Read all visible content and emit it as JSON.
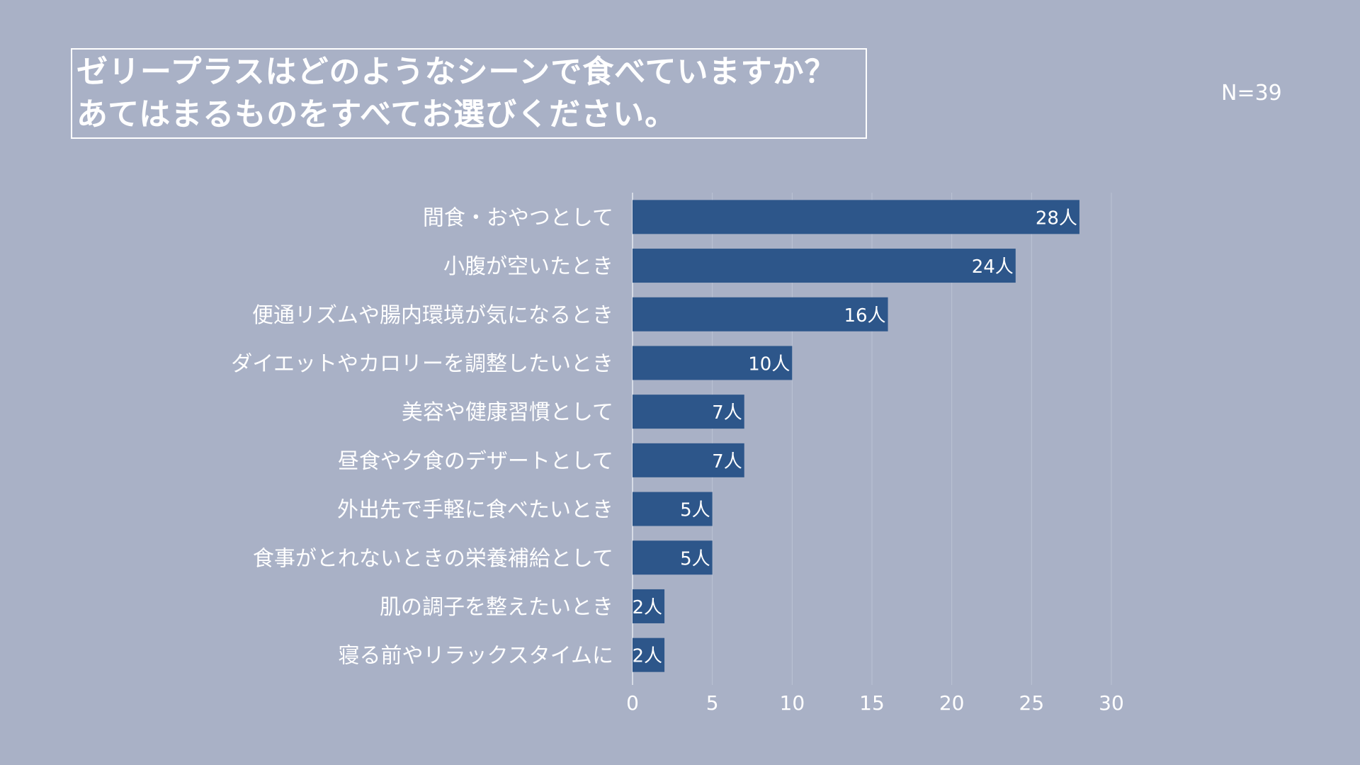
{
  "title": {
    "line1": "ゼリープラスはどのようなシーンで食べていますか？",
    "line2": "あてはまるものをすべてお選びください。"
  },
  "sample_size": "N=39",
  "colors": {
    "background": "#a9b1c6",
    "bar": "#2d568a",
    "text": "#ffffff",
    "grid": "#bcc3d4"
  },
  "chart_data": {
    "type": "bar",
    "orientation": "horizontal",
    "categories": [
      "間食・おやつとして",
      "小腹が空いたとき",
      "便通リズムや腸内環境が気になるとき",
      "ダイエットやカロリーを調整したいとき",
      "美容や健康習慣として",
      "昼食や夕食のデザートとして",
      "外出先で手軽に食べたいとき",
      "食事がとれないときの栄養補給として",
      "肌の調子を整えたいとき",
      "寝る前やリラックスタイムに"
    ],
    "values": [
      28,
      24,
      16,
      10,
      7,
      7,
      5,
      5,
      2,
      2
    ],
    "data_labels": [
      "28人",
      "24人",
      "16人",
      "10人",
      "7人",
      "7人",
      "5人",
      "5人",
      "2人",
      "2人"
    ],
    "x_ticks": [
      "0",
      "5",
      "10",
      "15",
      "20",
      "25",
      "30"
    ],
    "xlim": [
      0,
      30
    ],
    "grid": true,
    "legend": false
  }
}
